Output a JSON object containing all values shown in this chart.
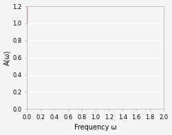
{
  "title": "",
  "xlabel": "Frequency ω",
  "ylabel": "A(ω)",
  "xlim": [
    0,
    2
  ],
  "ylim": [
    0,
    1.2
  ],
  "xticks": [
    0,
    0.2,
    0.4,
    0.6,
    0.8,
    1.0,
    1.2,
    1.4,
    1.6,
    1.8,
    2.0
  ],
  "yticks": [
    0,
    0.2,
    0.4,
    0.6,
    0.8,
    1.0,
    1.2
  ],
  "line_color": "#d9534f",
  "line_width": 1.2,
  "background_color": "#f5f5f5",
  "grid_color": "#ffffff",
  "m": 0.5,
  "n_sections": 4
}
